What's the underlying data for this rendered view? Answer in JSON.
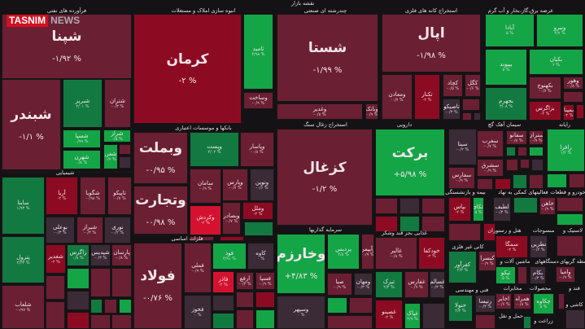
{
  "header": {
    "title": "نقشه بازار"
  },
  "logo": {
    "brand": "TASNIM",
    "suffix": "NEWS"
  },
  "colors": {
    "down": "#6b1f33",
    "red": "#8d0b22",
    "bright": "#d41230",
    "green": "#14a546",
    "dgreen": "#127a40",
    "grey": "#3a2b37",
    "background": "#141214"
  },
  "sectors": [
    "فرآورده های نفتی",
    "انبوه سازی املاک و مستغلات",
    "چندرشته ای صنعتی",
    "استخراج کانه های فلزی",
    "عرضه برق،گاز،بخار و آب گرم",
    "بانکها و موسسات اعتباری",
    "شیمیایی",
    "استخراج زغال سنگ",
    "دارویی",
    "سیمان آهک گچ",
    "رایانه",
    "فلزات اساسی",
    "سرمایه گذاریها",
    "غذایی بجز قند وشکر",
    "بیمه و بازنشستگی",
    "فعالیتهای کمکی به نهاد",
    "خودرو و قطعات",
    "هتل و رستوران",
    "منسوجات",
    "لاستیک و",
    "کانی غیر فلزی",
    "ماشین آلات و",
    "دستگاههای",
    "واسطه گریهای",
    "مخابرات",
    "محصولات",
    "قند و",
    "فنی و مهندسی",
    "حمل و نقل",
    "زراعت و",
    "کاشی و"
  ],
  "tiles": [
    {
      "name": "شپنا",
      "change": "-۱/۹۲ %",
      "tone": "down"
    },
    {
      "name": "شبندر",
      "change": "-۱/۱ %",
      "tone": "down"
    },
    {
      "name": "شبریز",
      "change": "۲/۰۱ %",
      "tone": "dgreen"
    },
    {
      "name": "شتران",
      "change": "-۰/۳ %",
      "tone": "down"
    },
    {
      "name": "شسپا",
      "change": "۰/۹۹ %",
      "tone": "green"
    },
    {
      "name": "شراز",
      "change": "۰/۵ %",
      "tone": "green"
    },
    {
      "name": "شهرن",
      "change": "۰/۸ %",
      "tone": "green"
    },
    {
      "name": "شفن",
      "change": "۰/۹ %",
      "tone": "green"
    },
    {
      "name": "کرمان",
      "change": "-۲ %",
      "tone": "red"
    },
    {
      "name": "ثامید",
      "change": "۴/۹۸ %",
      "tone": "green"
    },
    {
      "name": "وساخت",
      "change": "-۰/۹ %",
      "tone": "down"
    },
    {
      "name": "وبملت",
      "change": "-۰/۹۵ %",
      "tone": "down"
    },
    {
      "name": "وپست",
      "change": "۲/۰۲ %",
      "tone": "dgreen"
    },
    {
      "name": "وپاسار",
      "change": "-۰/۸ %",
      "tone": "down"
    },
    {
      "name": "وتجارت",
      "change": "-۰/۹۸ %",
      "tone": "down"
    },
    {
      "name": "سامان",
      "change": "-۰/۹ %",
      "tone": "down"
    },
    {
      "name": "وپارس",
      "change": "-۰/۷ %",
      "tone": "down"
    },
    {
      "name": "ونوین",
      "change": "-۰/۶ %",
      "tone": "grey"
    },
    {
      "name": "وکردش",
      "change": "-۲ %",
      "tone": "bright"
    },
    {
      "name": "وبصادر",
      "change": "-۰/۷ %",
      "tone": "down"
    },
    {
      "name": "وملل",
      "change": "-۲ %",
      "tone": "red"
    },
    {
      "name": "ساینا",
      "change": "۱/۹۳ %",
      "tone": "dgreen"
    },
    {
      "name": "پترول",
      "change": "۲/۴۳ %",
      "tone": "dgreen"
    },
    {
      "name": "شلعاب",
      "change": "-۰/۹۷ %",
      "tone": "down"
    },
    {
      "name": "آریا",
      "change": "-۲ %",
      "tone": "red"
    },
    {
      "name": "شگویا",
      "change": "-۰/۹۸ %",
      "tone": "down"
    },
    {
      "name": "تاپیکو",
      "change": "-۰/۷ %",
      "tone": "down"
    },
    {
      "name": "بوعلی",
      "change": "-۰/۳ %",
      "tone": "grey"
    },
    {
      "name": "شیراز",
      "change": "-۰/۴ %",
      "tone": "down"
    },
    {
      "name": "نوری",
      "change": "-۰/۲ %",
      "tone": "grey"
    },
    {
      "name": "شغدیر",
      "change": "-۲ %",
      "tone": "red"
    },
    {
      "name": "زاگرس",
      "change": "۰/۸ %",
      "tone": "dgreen"
    },
    {
      "name": "شپدیس",
      "change": "-۰/۳ %",
      "tone": "grey"
    },
    {
      "name": "پارسان",
      "change": "-۰/۸ %",
      "tone": "down"
    },
    {
      "name": "فولاد",
      "change": "-۰/۷۶ %",
      "tone": "down"
    },
    {
      "name": "فملی",
      "change": "-۰/۹ %",
      "tone": "down"
    },
    {
      "name": "فوذ",
      "change": "۴/۹۱ %",
      "tone": "green"
    },
    {
      "name": "کاوه",
      "change": "۰ %",
      "tone": "grey"
    },
    {
      "name": "فخوز",
      "change": "۰ %",
      "tone": "grey"
    },
    {
      "name": "فاذر",
      "change": "-۲ %",
      "tone": "bright"
    },
    {
      "name": "ارفع",
      "change": "-۰/۳ %",
      "tone": "down"
    },
    {
      "name": "فسپا",
      "change": "-۰/۹ %",
      "tone": "down"
    },
    {
      "name": "شستا",
      "change": "-۱/۹۹ %",
      "tone": "down"
    },
    {
      "name": "وغدیر",
      "change": "-۰/۸ %",
      "tone": "down"
    },
    {
      "name": "وبانک",
      "change": "-۰/۹ %",
      "tone": "down"
    },
    {
      "name": "اپال",
      "change": "-۱/۹۸ %",
      "tone": "down"
    },
    {
      "name": "ومعادن",
      "change": "-۰/۷ %",
      "tone": "down"
    },
    {
      "name": "تکنار",
      "change": "-۲ %",
      "tone": "red"
    },
    {
      "name": "کچاد",
      "change": "-۰/۵ %",
      "tone": "down"
    },
    {
      "name": "کگل",
      "change": "-۰/۶ %",
      "tone": "down"
    },
    {
      "name": "تاصیکو",
      "change": "-۰/۳ %",
      "tone": "grey"
    },
    {
      "name": "آبادا",
      "change": "۵ %",
      "tone": "green"
    },
    {
      "name": "ونیرو",
      "change": "۴/۹ %",
      "tone": "green"
    },
    {
      "name": "بپیوند",
      "change": "۵ %",
      "tone": "green"
    },
    {
      "name": "بکیان",
      "change": "۶ %",
      "tone": "green"
    },
    {
      "name": "بجهرم",
      "change": "۳/۰۸ %",
      "tone": "dgreen"
    },
    {
      "name": "بکهنوج",
      "change": "-۰/۷ %",
      "tone": "down"
    },
    {
      "name": "وهور",
      "change": "-۰/۸ %",
      "tone": "down"
    },
    {
      "name": "بزاگرس",
      "change": "-۲ %",
      "tone": "red"
    },
    {
      "name": "بمپنا",
      "change": "-۲ %",
      "tone": "red"
    },
    {
      "name": "کزغال",
      "change": "-۱/۲ %",
      "tone": "down"
    },
    {
      "name": "برکت",
      "change": "+۵/۹۸ %",
      "tone": "green"
    },
    {
      "name": "سیتا",
      "change": "-۰/۲ %",
      "tone": "grey"
    },
    {
      "name": "سغرب",
      "change": "-۰/۷ %",
      "tone": "down"
    },
    {
      "name": "سفانو",
      "change": "-۰/۸ %",
      "tone": "down"
    },
    {
      "name": "ستران",
      "change": "-۰/۹ %",
      "tone": "down"
    },
    {
      "name": "سفارس",
      "change": "-۰/۹ %",
      "tone": "down"
    },
    {
      "name": "سشرق",
      "change": "-۰/۹ %",
      "tone": "down"
    },
    {
      "name": "رافزا",
      "change": "۱/۲ %",
      "tone": "green"
    },
    {
      "name": "وخارزم",
      "change": "+۴/۸۳ %",
      "tone": "green"
    },
    {
      "name": "پردیس",
      "change": "۴/۸ %",
      "tone": "green"
    },
    {
      "name": "وآیپمن",
      "change": "-۰/۹ %",
      "tone": "down"
    },
    {
      "name": "صبا",
      "change": "-۰/۹ %",
      "tone": "down"
    },
    {
      "name": "ومهان",
      "change": "-۰/۳ %",
      "tone": "grey"
    },
    {
      "name": "وسپهر",
      "change": "۰ %",
      "tone": "grey"
    },
    {
      "name": "غالبر",
      "change": "-۰/۸ %",
      "tone": "down"
    },
    {
      "name": "خودکفا",
      "change": "-۲ %",
      "tone": "red"
    },
    {
      "name": "تبرک",
      "change": "۲/۳ %",
      "tone": "dgreen"
    },
    {
      "name": "غفارس",
      "change": "-۰/۹ %",
      "tone": "down"
    },
    {
      "name": "غسالم",
      "change": "-۰/۳ %",
      "tone": "grey"
    },
    {
      "name": "غصینو",
      "change": "-۲ %",
      "tone": "red"
    },
    {
      "name": "غپاک",
      "change": "۴/۹ %",
      "tone": "green"
    },
    {
      "name": "بپاس",
      "change": "-۲ %",
      "tone": "red"
    },
    {
      "name": "اتکای",
      "change": "۵ %",
      "tone": "green"
    },
    {
      "name": "لطیف",
      "change": "-۰/۳ %",
      "tone": "grey"
    },
    {
      "name": "خاهن",
      "change": "-۰/۹ %",
      "tone": "down"
    },
    {
      "name": "سمگا",
      "change": "-۲ %",
      "tone": "red"
    },
    {
      "name": "نطرین",
      "change": "-۰/۲ %",
      "tone": "grey"
    },
    {
      "name": "کفرآور",
      "change": "۲/۳ %",
      "tone": "dgreen"
    },
    {
      "name": "کیسرا",
      "change": "-۰/۹ %",
      "tone": "down"
    },
    {
      "name": "تپکو",
      "change": "۵ %",
      "tone": "green"
    },
    {
      "name": "بکام",
      "change": "-۰/۳ %",
      "tone": "grey"
    },
    {
      "name": "وامیا",
      "change": "-۰/۹ %",
      "tone": "down"
    },
    {
      "name": "اخابر",
      "change": "-۰/۶ %",
      "tone": "down"
    },
    {
      "name": "همراه",
      "change": "-۰/۸ %",
      "tone": "down"
    },
    {
      "name": "چکاوه",
      "change": "۵ %",
      "tone": "green"
    },
    {
      "name": "خنولا",
      "change": "۲/۲ %",
      "tone": "dgreen"
    },
    {
      "name": "رتپسا",
      "change": "-۰/۳ %",
      "tone": "grey"
    }
  ]
}
